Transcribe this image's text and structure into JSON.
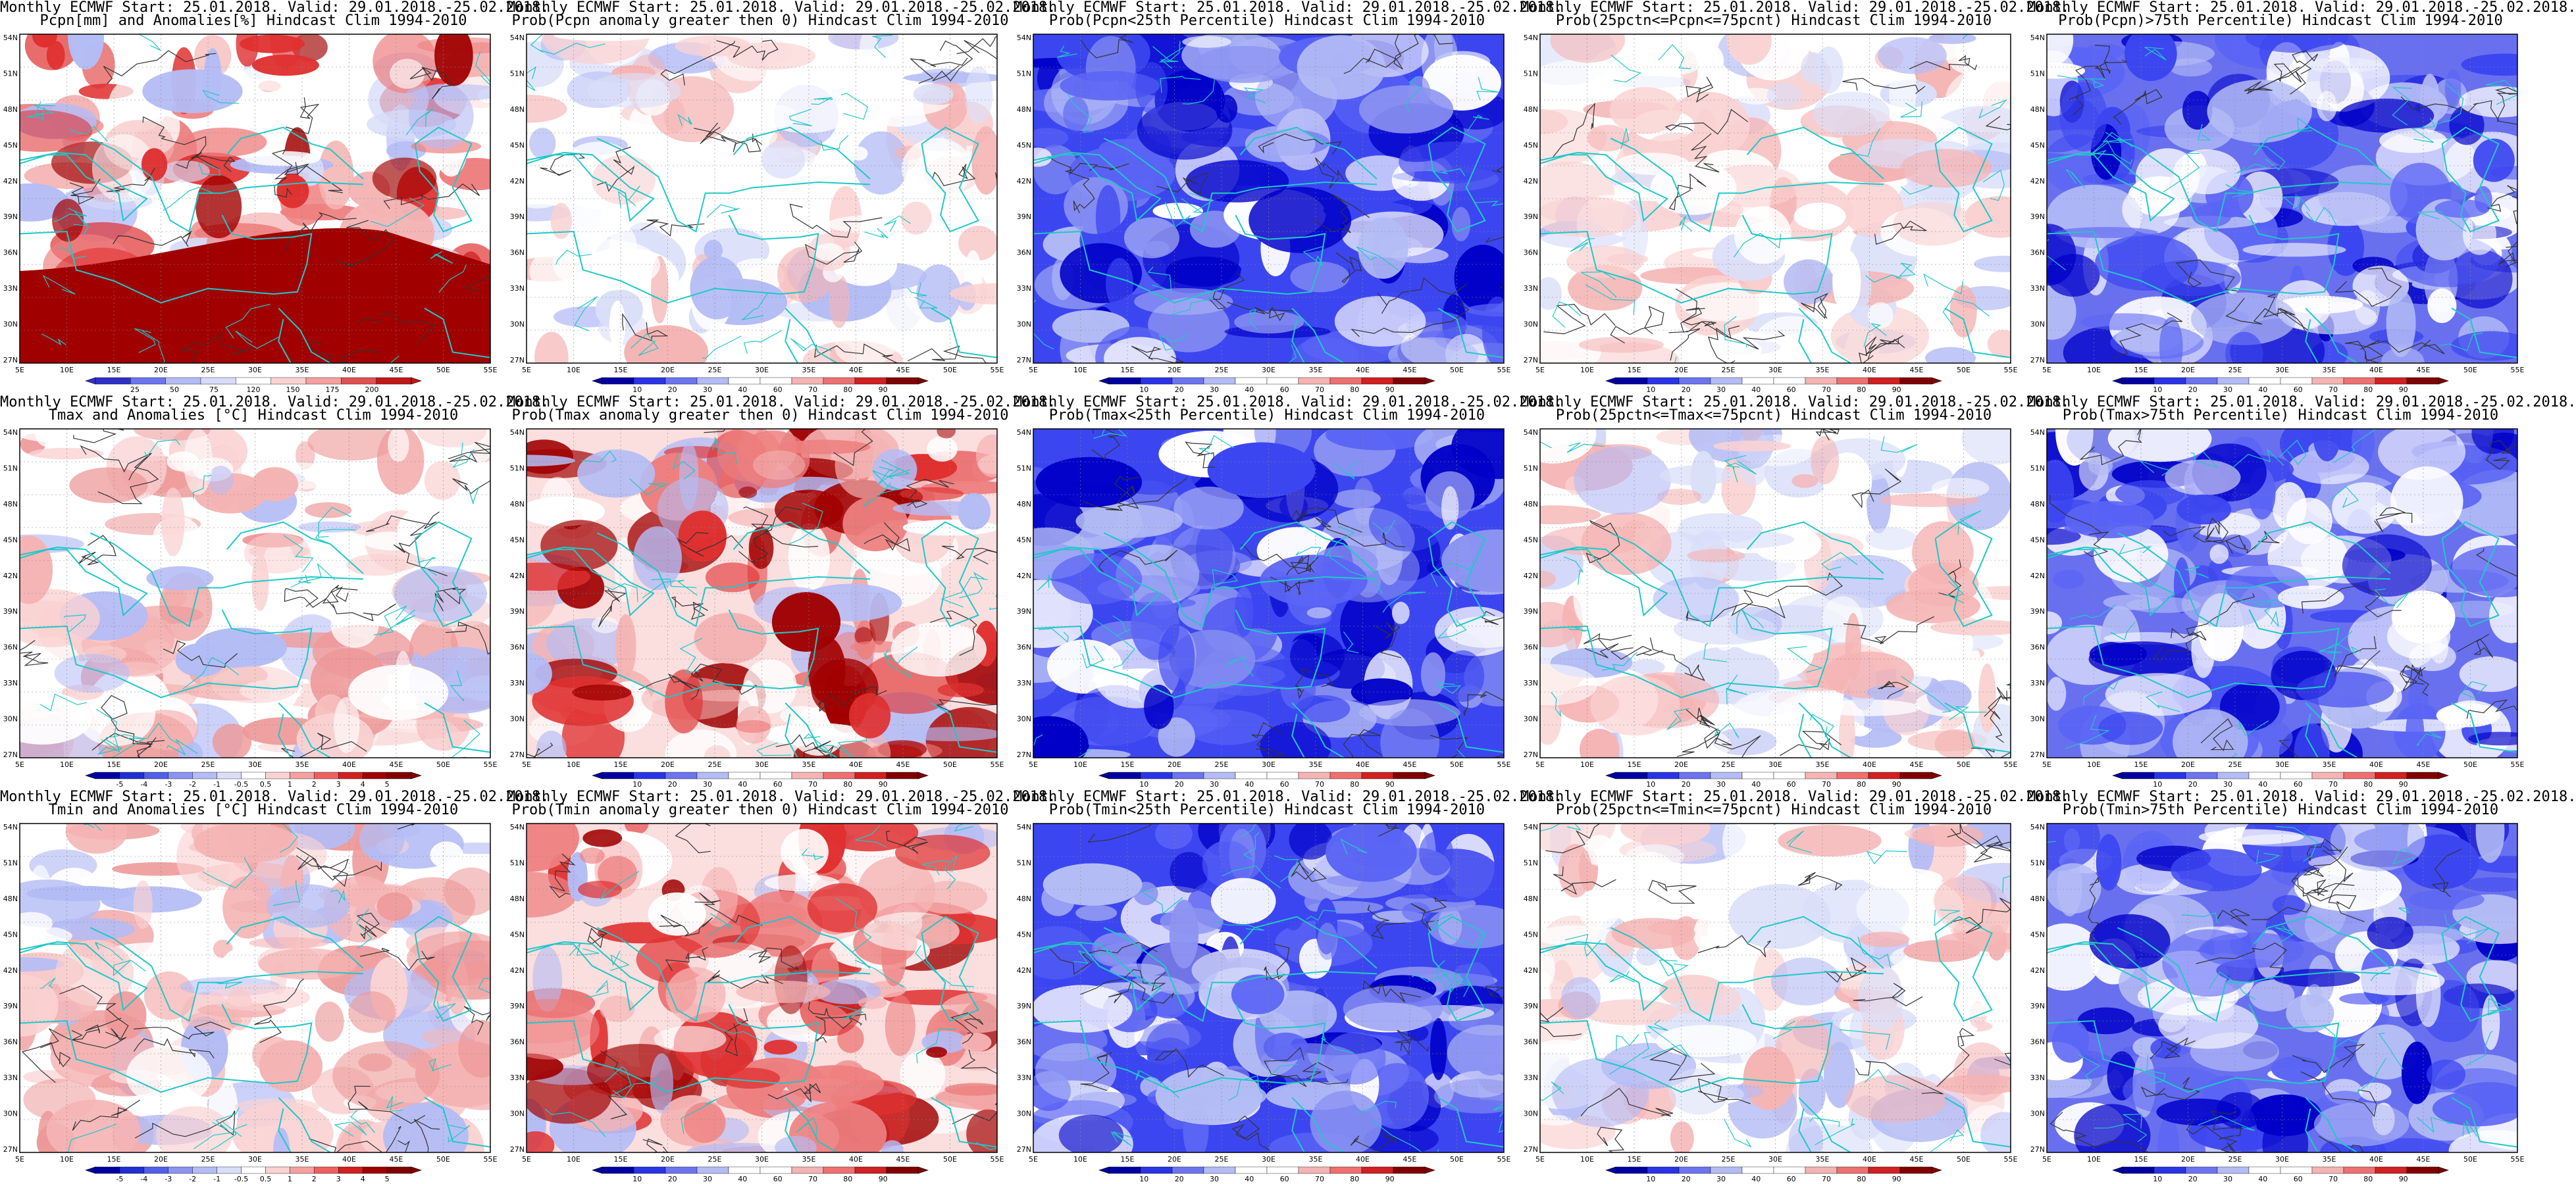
{
  "lat_labels": [
    "54N",
    "51N",
    "48N",
    "45N",
    "42N",
    "39N",
    "36N",
    "33N",
    "30N",
    "27N"
  ],
  "lon_labels": [
    "5E",
    "10E",
    "15E",
    "20E",
    "25E",
    "30E",
    "35E",
    "40E",
    "45E",
    "50E",
    "55E"
  ],
  "colorbars": {
    "precip_anom": {
      "type": "precip",
      "labels": [
        "25",
        "50",
        "75",
        "120",
        "150",
        "175",
        "200"
      ]
    },
    "temp_anom": {
      "type": "temp",
      "labels": [
        "-5",
        "-4",
        "-3",
        "-2",
        "-1",
        "-0.5",
        "0.5",
        "1",
        "2",
        "3",
        "4",
        "5"
      ]
    },
    "prob": {
      "type": "prob",
      "labels": [
        "10",
        "20",
        "30",
        "40",
        "60",
        "70",
        "80",
        "90"
      ]
    }
  },
  "panels": [
    {
      "row": 0,
      "col": 0,
      "line1": "Monthly ECMWF Start: 25.01.2018. Valid: 29.01.2018.-25.02.2018.",
      "line2": "Pcpn[mm] and Anomalies[%] Hindcast Clim 1994-2010",
      "scheme": "precip",
      "colorbar": "precip_anom"
    },
    {
      "row": 0,
      "col": 1,
      "line1": "Monthly ECMWF Start: 25.01.2018. Valid: 29.01.2018.-25.02.2018.",
      "line2": "Prob(Pcpn anomaly greater then 0) Hindcast Clim 1994-2010",
      "scheme": "light",
      "colorbar": "prob"
    },
    {
      "row": 0,
      "col": 2,
      "line1": "Monthly ECMWF Start: 25.01.2018. Valid: 29.01.2018.-25.02.2018.",
      "line2": "Prob(Pcpn<25th Percentile) Hindcast Clim 1994-2010",
      "scheme": "blue",
      "colorbar": "prob"
    },
    {
      "row": 0,
      "col": 3,
      "line1": "Monthly ECMWF Start: 25.01.2018. Valid: 29.01.2018.-25.02.2018.",
      "line2": "Prob(25pctn<=Pcpn<=75pcnt) Hindcast Clim 1994-2010",
      "scheme": "light",
      "colorbar": "prob"
    },
    {
      "row": 0,
      "col": 4,
      "line1": "Monthly ECMWF Start: 25.01.2018. Valid: 29.01.2018.-25.02.2018.",
      "line2": "Prob(Pcpn)>75th Percentile) Hindcast Clim 1994-2010",
      "scheme": "bluemix",
      "colorbar": "prob"
    },
    {
      "row": 1,
      "col": 0,
      "line1": "Monthly ECMWF Start: 25.01.2018. Valid: 29.01.2018.-25.02.2018.",
      "line2": "Tmax and Anomalies [°C] Hindcast Clim 1994-2010",
      "scheme": "pink",
      "colorbar": "temp_anom"
    },
    {
      "row": 1,
      "col": 1,
      "line1": "Monthly ECMWF Start: 25.01.2018. Valid: 29.01.2018.-25.02.2018.",
      "line2": "Prob(Tmax anomaly greater then 0) Hindcast Clim 1994-2010",
      "scheme": "red",
      "colorbar": "prob"
    },
    {
      "row": 1,
      "col": 2,
      "line1": "Monthly ECMWF Start: 25.01.2018. Valid: 29.01.2018.-25.02.2018.",
      "line2": "Prob(Tmax<25th Percentile) Hindcast Clim 1994-2010",
      "scheme": "blue",
      "colorbar": "prob"
    },
    {
      "row": 1,
      "col": 3,
      "line1": "Monthly ECMWF Start: 25.01.2018. Valid: 29.01.2018.-25.02.2018.",
      "line2": "Prob(25pctn<=Tmax<=75pcnt) Hindcast Clim 1994-2010",
      "scheme": "light",
      "colorbar": "prob"
    },
    {
      "row": 1,
      "col": 4,
      "line1": "Monthly ECMWF Start: 25.01.2018. Valid: 29.01.2018.-25.02.2018.",
      "line2": "Prob(Tmax>75th Percentile) Hindcast Clim 1994-2010",
      "scheme": "bluemix",
      "colorbar": "prob"
    },
    {
      "row": 2,
      "col": 0,
      "line1": "Monthly ECMWF Start: 25.01.2018. Valid: 29.01.2018.-25.02.2018.",
      "line2": "Tmin and Anomalies [°C] Hindcast Clim 1994-2010",
      "scheme": "pink",
      "colorbar": "temp_anom"
    },
    {
      "row": 2,
      "col": 1,
      "line1": "Monthly ECMWF Start: 25.01.2018. Valid: 29.01.2018.-25.02.2018.",
      "line2": "Prob(Tmin anomaly greater then 0) Hindcast Clim 1994-2010",
      "scheme": "red",
      "colorbar": "prob"
    },
    {
      "row": 2,
      "col": 2,
      "line1": "Monthly ECMWF Start: 25.01.2018. Valid: 29.01.2018.-25.02.2018.",
      "line2": "Prob(Tmin<25th Percentile) Hindcast Clim 1994-2010",
      "scheme": "blue",
      "colorbar": "prob"
    },
    {
      "row": 2,
      "col": 3,
      "line1": "Monthly ECMWF Start: 25.01.2018. Valid: 29.01.2018.-25.02.2018.",
      "line2": "Prob(25pctn<=Tmin<=75pcnt) Hindcast Clim 1994-2010",
      "scheme": "light",
      "colorbar": "prob"
    },
    {
      "row": 2,
      "col": 4,
      "line1": "Monthly ECMWF Start: 25.01.2018. Valid: 29.01.2018.-25.02.2018.",
      "line2": "Prob(Tmin>75th Percentile) Hindcast Clim 1994-2010",
      "scheme": "bluemix",
      "colorbar": "prob"
    }
  ],
  "colors": {
    "coastline": "#20c8c8",
    "contour": "#333333",
    "frame": "#000000",
    "blue_dark": "#0000c8",
    "blue_mid": "#3c46f0",
    "blue_light": "#b4bcf5",
    "red_dark": "#a00000",
    "red_mid": "#e03030",
    "red_light": "#f5b4b4"
  }
}
